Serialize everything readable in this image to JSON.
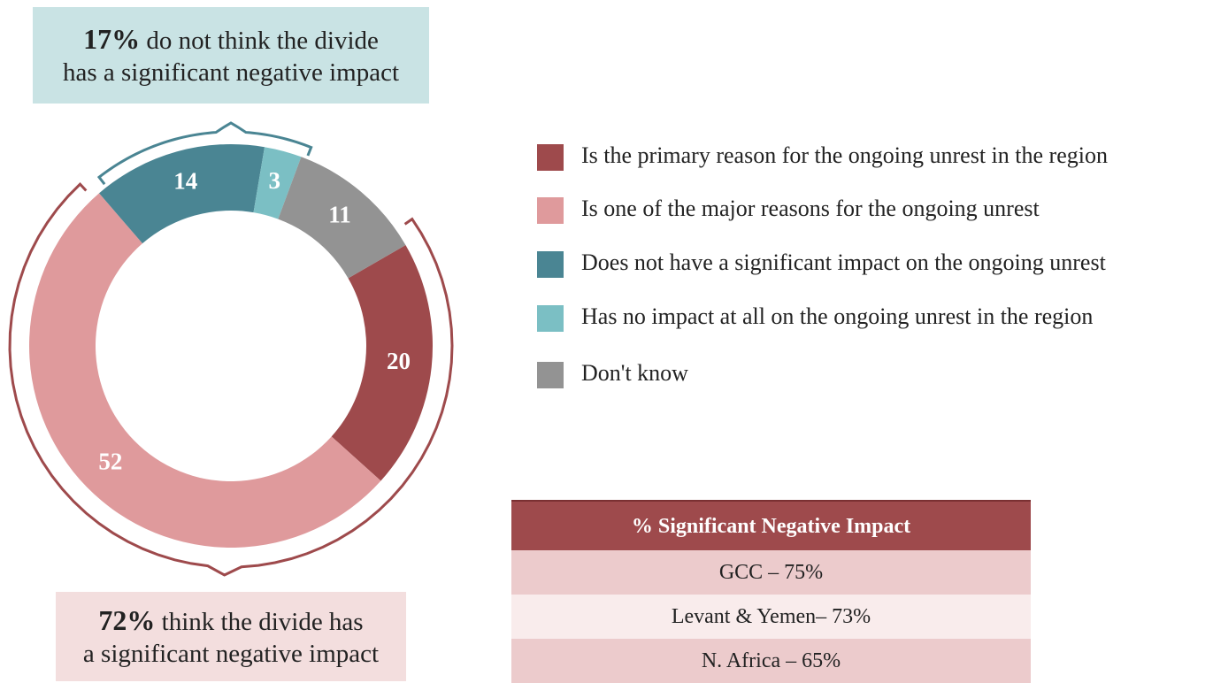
{
  "chart_data": {
    "type": "donut",
    "categories": [
      "Is the primary reason for the ongoing unrest in the region",
      "Is one of the major reasons for the ongoing unrest",
      "Does not have a significant impact on the ongoing unrest",
      "Has no impact at all on the ongoing unrest in the region",
      "Don't know"
    ],
    "values": [
      20,
      52,
      14,
      3,
      11
    ],
    "colors": [
      "#9e4a4c",
      "#df9a9c",
      "#4a8593",
      "#7bbfc4",
      "#939393"
    ],
    "annotations": [
      {
        "highlight": "17%",
        "lines": [
          "do not think the divide",
          "has a significant negative impact"
        ]
      },
      {
        "highlight": "72%",
        "lines": [
          "think the divide has",
          "a significant negative impact"
        ]
      }
    ],
    "table": {
      "header": "% Significant Negative Impact",
      "rows": [
        "GCC – 75%",
        "Levant & Yemen– 73%",
        "N. Africa – 65%"
      ]
    }
  }
}
